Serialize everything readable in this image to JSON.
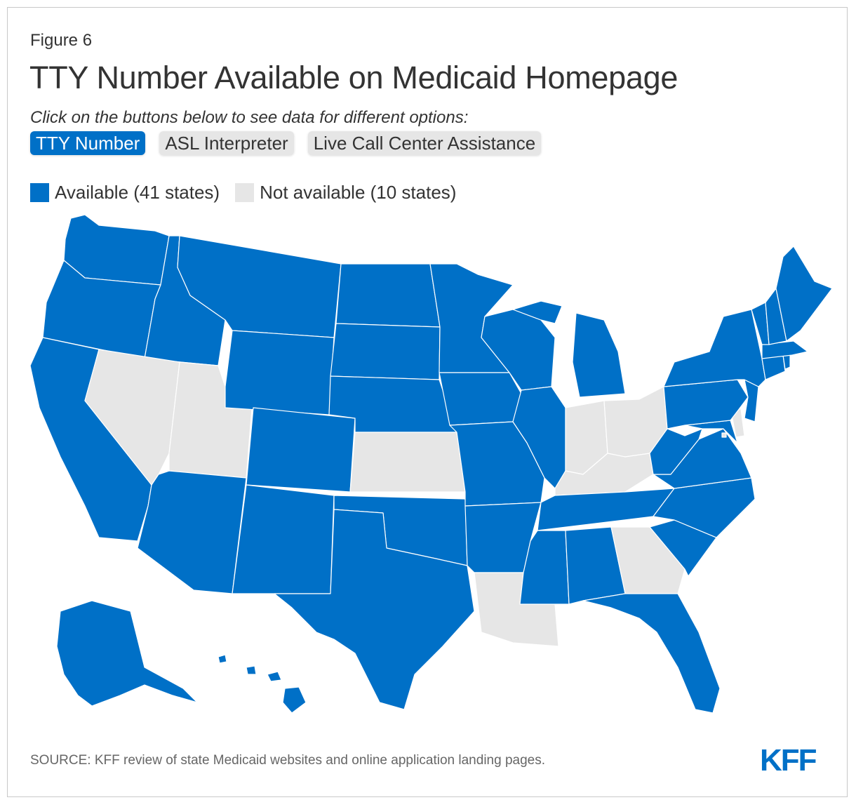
{
  "figure_label": "Figure 6",
  "title": "TTY Number Available on Medicaid Homepage",
  "instructions": "Click on the buttons below to see data for different options:",
  "buttons": [
    {
      "label": "TTY Number",
      "active": true
    },
    {
      "label": "ASL Interpreter",
      "active": false
    },
    {
      "label": "Live Call Center Assistance",
      "active": false
    }
  ],
  "legend": {
    "available": {
      "label": "Available (41 states)",
      "color": "#0070c7"
    },
    "not_available": {
      "label": "Not available (10 states)",
      "color": "#e6e6e6"
    }
  },
  "map": {
    "available_states": [
      "AL",
      "AK",
      "AZ",
      "AR",
      "CA",
      "CO",
      "CT",
      "FL",
      "HI",
      "ID",
      "IL",
      "IA",
      "ME",
      "MD",
      "MA",
      "MI",
      "MN",
      "MS",
      "MO",
      "MT",
      "NE",
      "NH",
      "NJ",
      "NM",
      "NY",
      "NC",
      "ND",
      "OK",
      "OR",
      "PA",
      "RI",
      "SC",
      "SD",
      "TN",
      "TX",
      "VT",
      "VA",
      "WA",
      "WV",
      "WI",
      "WY"
    ],
    "not_available_states": [
      "NV",
      "UT",
      "KS",
      "LA",
      "GA",
      "IN",
      "OH",
      "KY",
      "DE",
      "DC"
    ]
  },
  "source": "SOURCE: KFF review of state Medicaid websites and online application landing pages.",
  "logo_text": "KFF"
}
